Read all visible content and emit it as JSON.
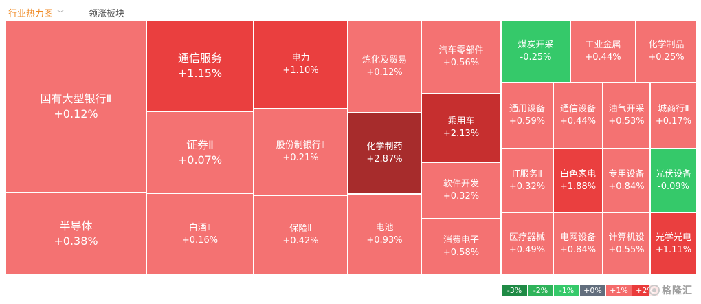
{
  "tabs": {
    "active": "行业热力图",
    "inactive": "领涨板块"
  },
  "chart_data": {
    "type": "treemap",
    "tiles": [
      {
        "name": "国有大型银行Ⅱ",
        "change": "+0.12%",
        "value": 0.12
      },
      {
        "name": "半导体",
        "change": "+0.38%",
        "value": 0.38
      },
      {
        "name": "通信服务",
        "change": "+1.15%",
        "value": 1.15
      },
      {
        "name": "证券Ⅱ",
        "change": "+0.07%",
        "value": 0.07
      },
      {
        "name": "白酒Ⅱ",
        "change": "+0.16%",
        "value": 0.16
      },
      {
        "name": "电力",
        "change": "+1.10%",
        "value": 1.1
      },
      {
        "name": "股份制银行Ⅱ",
        "change": "+0.21%",
        "value": 0.21
      },
      {
        "name": "保险Ⅱ",
        "change": "+0.42%",
        "value": 0.42
      },
      {
        "name": "炼化及贸易",
        "change": "+0.12%",
        "value": 0.12
      },
      {
        "name": "化学制药",
        "change": "+2.87%",
        "value": 2.87
      },
      {
        "name": "电池",
        "change": "+0.93%",
        "value": 0.93
      },
      {
        "name": "汽车零部件",
        "change": "+0.56%",
        "value": 0.56
      },
      {
        "name": "乘用车",
        "change": "+2.13%",
        "value": 2.13
      },
      {
        "name": "软件开发",
        "change": "+0.32%",
        "value": 0.32
      },
      {
        "name": "消费电子",
        "change": "+0.58%",
        "value": 0.58
      },
      {
        "name": "煤炭开采",
        "change": "-0.25%",
        "value": -0.25
      },
      {
        "name": "工业金属",
        "change": "+0.44%",
        "value": 0.44
      },
      {
        "name": "化学制品",
        "change": "+0.25%",
        "value": 0.25
      },
      {
        "name": "通用设备",
        "change": "+0.59%",
        "value": 0.59
      },
      {
        "name": "通信设备",
        "change": "+0.44%",
        "value": 0.44
      },
      {
        "name": "油气开采",
        "change": "+0.53%",
        "value": 0.53
      },
      {
        "name": "城商行Ⅱ",
        "change": "+0.17%",
        "value": 0.17
      },
      {
        "name": "IT服务Ⅱ",
        "change": "+0.32%",
        "value": 0.32
      },
      {
        "name": "白色家电",
        "change": "+1.88%",
        "value": 1.88
      },
      {
        "name": "专用设备",
        "change": "+0.84%",
        "value": 0.84
      },
      {
        "name": "光伏设备",
        "change": "-0.09%",
        "value": -0.09
      },
      {
        "name": "医疗器械",
        "change": "+0.49%",
        "value": 0.49
      },
      {
        "name": "电网设备",
        "change": "+0.84%",
        "value": 0.84
      },
      {
        "name": "计算机设",
        "change": "+0.55%",
        "value": 0.55
      },
      {
        "name": "光学光电",
        "change": "+1.11%",
        "value": 1.11
      }
    ],
    "legend": [
      {
        "label": "-3%",
        "color": "#1f8a45"
      },
      {
        "label": "-2%",
        "color": "#2fb35a"
      },
      {
        "label": "-1%",
        "color": "#35c96a"
      },
      {
        "label": "+0%",
        "color": "#626e7d"
      },
      {
        "label": "+1%",
        "color": "#f46b6b"
      },
      {
        "label": "+2%",
        "color": "#ea3b3b"
      }
    ],
    "colors": {
      "up_light": "#f47272",
      "up_medium": "#ea3f3f",
      "up_strong": "#c62f2f",
      "up_darkest": "#a72c2c",
      "down": "#35c96a"
    }
  },
  "watermark": {
    "text": "格隆汇"
  }
}
